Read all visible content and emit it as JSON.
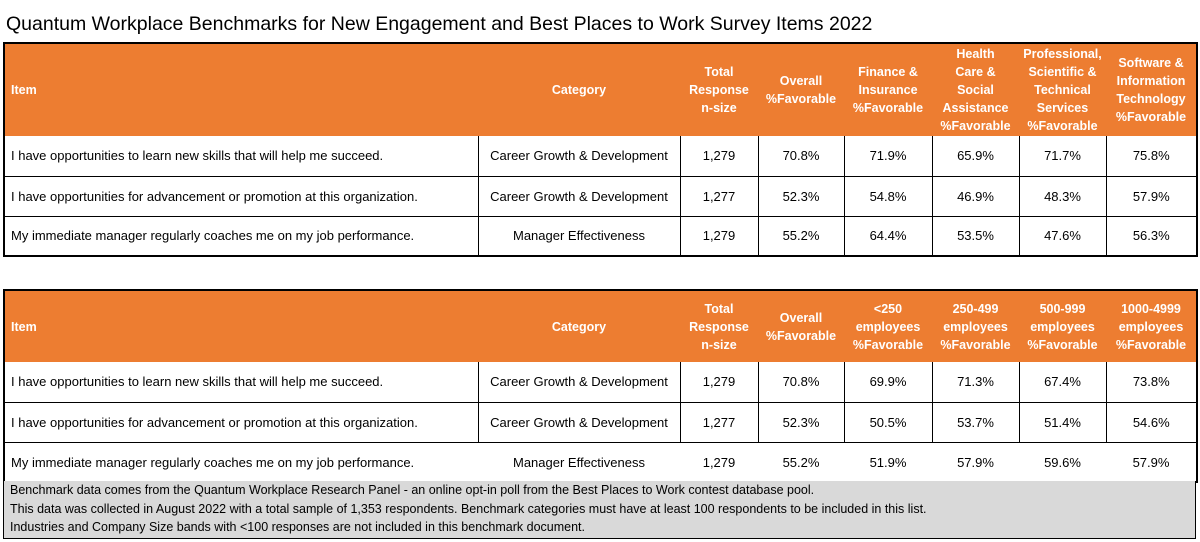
{
  "title": "Quantum Workplace Benchmarks for New Engagement and Best Places to Work Survey Items 2022",
  "table1": {
    "headers": [
      {
        "lines": [
          "Item"
        ]
      },
      {
        "lines": [
          "Category"
        ]
      },
      {
        "lines": [
          "Total",
          "Response",
          "n-size"
        ]
      },
      {
        "lines": [
          "Overall",
          "%Favorable"
        ]
      },
      {
        "lines": [
          "Finance &",
          "Insurance",
          "%Favorable"
        ]
      },
      {
        "lines": [
          "Health",
          "Care &",
          "Social",
          "Assistance",
          "%Favorable"
        ]
      },
      {
        "lines": [
          "Professional,",
          "Scientific &",
          "Technical",
          "Services",
          "%Favorable"
        ]
      },
      {
        "lines": [
          "Software &",
          "Information",
          "Technology",
          "%Favorable"
        ]
      }
    ],
    "rows": [
      [
        "I have opportunities to learn new skills that will help me succeed.",
        "Career Growth & Development",
        "1,279",
        "70.8%",
        "71.9%",
        "65.9%",
        "71.7%",
        "75.8%"
      ],
      [
        "I have opportunities for advancement or promotion at this organization.",
        "Career Growth & Development",
        "1,277",
        "52.3%",
        "54.8%",
        "46.9%",
        "48.3%",
        "57.9%"
      ],
      [
        "My immediate manager regularly coaches me on my job performance.",
        "Manager Effectiveness",
        "1,279",
        "55.2%",
        "64.4%",
        "53.5%",
        "47.6%",
        "56.3%"
      ]
    ]
  },
  "table2": {
    "headers": [
      {
        "lines": [
          "Item"
        ]
      },
      {
        "lines": [
          "Category"
        ]
      },
      {
        "lines": [
          "Total",
          "Response",
          "n-size"
        ]
      },
      {
        "lines": [
          "Overall",
          "%Favorable"
        ]
      },
      {
        "lines": [
          "<250",
          "employees",
          "%Favorable"
        ]
      },
      {
        "lines": [
          "250-499",
          "employees",
          "%Favorable"
        ]
      },
      {
        "lines": [
          "500-999",
          "employees",
          "%Favorable"
        ]
      },
      {
        "lines": [
          "1000-4999",
          "employees",
          "%Favorable"
        ]
      }
    ],
    "rows": [
      [
        "I have opportunities to learn new skills that will help me succeed.",
        "Career Growth & Development",
        "1,279",
        "70.8%",
        "69.9%",
        "71.3%",
        "67.4%",
        "73.8%"
      ],
      [
        "I have opportunities for advancement or promotion at this organization.",
        "Career Growth & Development",
        "1,277",
        "52.3%",
        "50.5%",
        "53.7%",
        "51.4%",
        "54.6%"
      ],
      [
        "My immediate manager regularly coaches me on my job performance.",
        "Manager Effectiveness",
        "1,279",
        "55.2%",
        "51.9%",
        "57.9%",
        "59.6%",
        "57.9%"
      ]
    ]
  },
  "footer": {
    "lines": [
      "Benchmark data comes from the Quantum Workplace Research Panel - an online opt-in poll from the Best Places to Work contest database pool.",
      "This data was collected in August 2022 with a total sample of 1,353 respondents. Benchmark categories must have at least 100 respondents to be included in this list.",
      "Industries and Company Size bands with <100 responses are not included in this benchmark document."
    ]
  },
  "colors": {
    "header_bg": "#ed7d31",
    "header_text": "#ffffff",
    "footer_bg": "#d9d9d9"
  }
}
